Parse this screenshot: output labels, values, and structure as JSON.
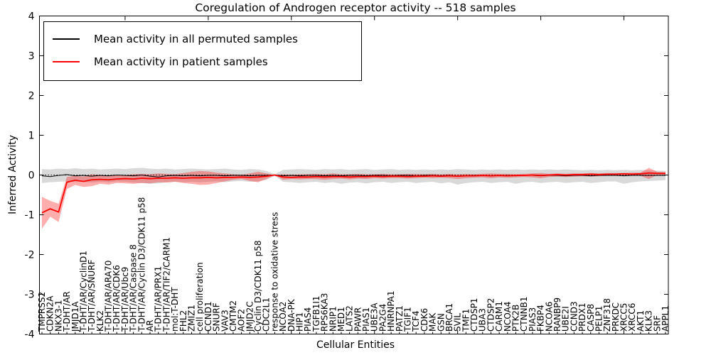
{
  "legend": {
    "entries": [
      {
        "label": "Mean activity in all permuted samples",
        "color": "#000000"
      },
      {
        "label": "Mean activity in patient samples",
        "color": "#ff0000"
      }
    ]
  },
  "colors": {
    "permuted_line": "#000000",
    "patient_line": "#ff0000",
    "permuted_band": "rgba(0,0,0,0.15)",
    "patient_band": "rgba(255,0,0,0.32)",
    "frame": "#000000"
  },
  "chart_data": {
    "type": "line",
    "title": "Coregulation of Androgen receptor activity -- 518 samples",
    "xlabel": "Cellular Entities",
    "ylabel": "Inferred Activity",
    "ylim": [
      -4,
      4
    ],
    "yticks": [
      4,
      3,
      2,
      1,
      0,
      -1,
      -2,
      -3,
      -4
    ],
    "zero_line": true,
    "legend_position": "upper left",
    "categories": [
      "TMPRSS2",
      "CDKN2A",
      "NKX3-1",
      "T-DHT/AR",
      "JMJD1A",
      "T-DHT/AR/CyclinD1",
      "T-DHT/AR/SNURF",
      "KLK2",
      "T-DHT/AR/ARA70",
      "T-DHT/AR/CDK6",
      "T-DHT/AR/Ubc9",
      "T-DHT/AR/Caspase 8",
      "T-DHT/AR/Cyclin D3/CDK11 p58",
      "AR",
      "T-DHT/AR/PRX1",
      "T-DHT/AR/TIF2/CARM1",
      "mol:T-DHT",
      "FHL2",
      "ZMIZ1",
      "cell proliferation",
      "CCND1",
      "SNURF",
      "VAV3",
      "CMTM2",
      "AOF2",
      "JMJD2C",
      "Cyclin D3/CDK11 p58",
      "CDC2L1",
      "response to oxidative stress",
      "NCOA2",
      "DNA-PK",
      "HIP1",
      "PIAS4",
      "TGFB1I1",
      "RPS6KA3",
      "NRIP1",
      "MED1",
      "LATS2",
      "PAWR",
      "PIAS1",
      "UBE3A",
      "PA2G4",
      "HNRNPA1",
      "PATZ1",
      "TGIF1",
      "TCF4",
      "CDK6",
      "MAK",
      "GSN",
      "BRCA1",
      "SVIL",
      "TMF1",
      "CTDSP1",
      "UBA3",
      "CTDSP2",
      "CARM1",
      "NCOA4",
      "PTK2B",
      "CTNNB1",
      "PIAS3",
      "FKBP4",
      "NCOA6",
      "RANBP9",
      "UBE2I",
      "CCND3",
      "PRDX1",
      "CASP8",
      "PELP1",
      "ZNF318",
      "PRKDC",
      "XRCC5",
      "XRCC6",
      "AKT1",
      "KLK3",
      "SRF",
      "APPL1"
    ],
    "series": [
      {
        "name": "Mean activity in all permuted samples",
        "color": "#000000",
        "values": [
          -0.02,
          -0.04,
          -0.01,
          0.01,
          -0.02,
          -0.01,
          -0.03,
          -0.01,
          -0.02,
          0,
          -0.01,
          -0.02,
          0,
          -0.03,
          -0.05,
          -0.02,
          -0.01,
          -0.02,
          -0.01,
          -0.02,
          -0.01,
          -0.01,
          -0.02,
          -0.01,
          -0.01,
          -0.02,
          -0.01,
          -0.01,
          0,
          -0.02,
          -0.01,
          -0.02,
          -0.01,
          -0.01,
          -0.02,
          -0.01,
          -0.02,
          -0.01,
          -0.01,
          -0.02,
          -0.01,
          -0.01,
          -0.02,
          -0.01,
          -0.01,
          -0.02,
          -0.01,
          -0.01,
          -0.02,
          -0.01,
          -0.03,
          -0.02,
          -0.01,
          -0.01,
          -0.02,
          -0.01,
          -0.01,
          -0.02,
          -0.01,
          -0.01,
          -0.02,
          -0.01,
          -0.01,
          -0.02,
          -0.01,
          -0.01,
          -0.02,
          -0.01,
          -0.01,
          -0.01,
          -0.02,
          -0.01,
          -0.01,
          -0.01,
          -0.01,
          -0.01
        ],
        "band_upper": [
          0.15,
          0.14,
          0.16,
          0.15,
          0.17,
          0.15,
          0.16,
          0.14,
          0.15,
          0.16,
          0.15,
          0.17,
          0.18,
          0.16,
          0.15,
          0.16,
          0.14,
          0.15,
          0.16,
          0.15,
          0.14,
          0.15,
          0.16,
          0.14,
          0.13,
          0.15,
          0.14,
          0.1,
          0.02,
          0.13,
          0.14,
          0.15,
          0.14,
          0.13,
          0.15,
          0.14,
          0.15,
          0.13,
          0.14,
          0.15,
          0.13,
          0.14,
          0.15,
          0.13,
          0.14,
          0.13,
          0.14,
          0.13,
          0.14,
          0.13,
          0.15,
          0.14,
          0.13,
          0.14,
          0.13,
          0.14,
          0.13,
          0.14,
          0.13,
          0.14,
          0.13,
          0.14,
          0.13,
          0.14,
          0.13,
          0.12,
          0.13,
          0.12,
          0.13,
          0.12,
          0.13,
          0.12,
          0.13,
          0.12,
          0.11,
          0.1
        ],
        "band_lower": [
          -0.2,
          -0.18,
          -0.17,
          -0.16,
          -0.18,
          -0.17,
          -0.19,
          -0.17,
          -0.18,
          -0.16,
          -0.17,
          -0.19,
          -0.2,
          -0.22,
          -0.21,
          -0.18,
          -0.17,
          -0.18,
          -0.17,
          -0.18,
          -0.17,
          -0.16,
          -0.18,
          -0.16,
          -0.15,
          -0.17,
          -0.16,
          -0.12,
          -0.02,
          -0.17,
          -0.18,
          -0.2,
          -0.18,
          -0.17,
          -0.2,
          -0.18,
          -0.22,
          -0.19,
          -0.18,
          -0.21,
          -0.18,
          -0.17,
          -0.2,
          -0.18,
          -0.17,
          -0.2,
          -0.18,
          -0.17,
          -0.21,
          -0.18,
          -0.24,
          -0.2,
          -0.18,
          -0.17,
          -0.2,
          -0.18,
          -0.17,
          -0.22,
          -0.18,
          -0.17,
          -0.2,
          -0.18,
          -0.17,
          -0.2,
          -0.18,
          -0.17,
          -0.2,
          -0.18,
          -0.16,
          -0.16,
          -0.22,
          -0.18,
          -0.16,
          -0.15,
          -0.14,
          -0.13
        ]
      },
      {
        "name": "Mean activity in patient samples",
        "color": "#ff0000",
        "values": [
          -0.95,
          -0.85,
          -0.93,
          -0.18,
          -0.13,
          -0.16,
          -0.12,
          -0.11,
          -0.12,
          -0.1,
          -0.09,
          -0.1,
          -0.08,
          -0.09,
          -0.08,
          -0.08,
          -0.07,
          -0.08,
          -0.07,
          -0.07,
          -0.06,
          -0.07,
          -0.06,
          -0.06,
          -0.05,
          -0.06,
          -0.05,
          -0.03,
          0,
          -0.05,
          -0.06,
          -0.05,
          -0.05,
          -0.04,
          -0.05,
          -0.04,
          -0.04,
          -0.05,
          -0.04,
          -0.04,
          -0.03,
          -0.04,
          -0.03,
          -0.03,
          -0.04,
          -0.03,
          -0.03,
          -0.02,
          -0.03,
          -0.02,
          -0.03,
          -0.02,
          -0.02,
          -0.01,
          -0.02,
          -0.01,
          -0.02,
          -0.01,
          -0.01,
          0,
          -0.01,
          0,
          0.01,
          0,
          0.01,
          0.01,
          0.02,
          0.01,
          0.02,
          0.02,
          0.03,
          0.02,
          0.03,
          0.05,
          0.04,
          0.04
        ],
        "band_upper": [
          -0.55,
          -0.65,
          -0.72,
          -0.05,
          -0.02,
          -0.04,
          0.02,
          0,
          -0.01,
          0.01,
          0,
          0.02,
          0.03,
          0.02,
          0.04,
          0.03,
          0.02,
          0.05,
          0.08,
          0.1,
          0.09,
          0.06,
          0.04,
          0.02,
          0.01,
          0.04,
          0.08,
          0.04,
          0,
          0.02,
          0.01,
          0.02,
          0.02,
          0.03,
          0.02,
          0.04,
          0.02,
          0.02,
          0.03,
          0.02,
          0.02,
          0.03,
          0.02,
          0.02,
          0.03,
          0.03,
          0.02,
          0.03,
          0.02,
          0.03,
          0.02,
          0.03,
          0.02,
          0.03,
          0.04,
          0.03,
          0.03,
          0.02,
          0.03,
          0.04,
          0.05,
          0.03,
          0.04,
          0.03,
          0.04,
          0.04,
          0.05,
          0.04,
          0.05,
          0.05,
          0.05,
          0.06,
          0.06,
          0.18,
          0.08,
          0.07
        ],
        "band_lower": [
          -1.35,
          -1.05,
          -1.18,
          -0.35,
          -0.25,
          -0.3,
          -0.28,
          -0.22,
          -0.24,
          -0.2,
          -0.21,
          -0.22,
          -0.2,
          -0.21,
          -0.18,
          -0.19,
          -0.17,
          -0.2,
          -0.22,
          -0.25,
          -0.24,
          -0.2,
          -0.16,
          -0.12,
          -0.1,
          -0.15,
          -0.18,
          -0.1,
          0,
          -0.12,
          -0.1,
          -0.11,
          -0.1,
          -0.1,
          -0.12,
          -0.1,
          -0.09,
          -0.11,
          -0.09,
          -0.1,
          -0.08,
          -0.09,
          -0.08,
          -0.08,
          -0.09,
          -0.08,
          -0.07,
          -0.08,
          -0.07,
          -0.08,
          -0.1,
          -0.08,
          -0.07,
          -0.06,
          -0.08,
          -0.06,
          -0.07,
          -0.06,
          -0.05,
          -0.06,
          -0.08,
          -0.05,
          -0.04,
          -0.05,
          -0.04,
          -0.03,
          -0.04,
          -0.03,
          -0.02,
          -0.02,
          -0.02,
          -0.01,
          -0.02,
          -0.1,
          0,
          0.01
        ]
      }
    ]
  }
}
